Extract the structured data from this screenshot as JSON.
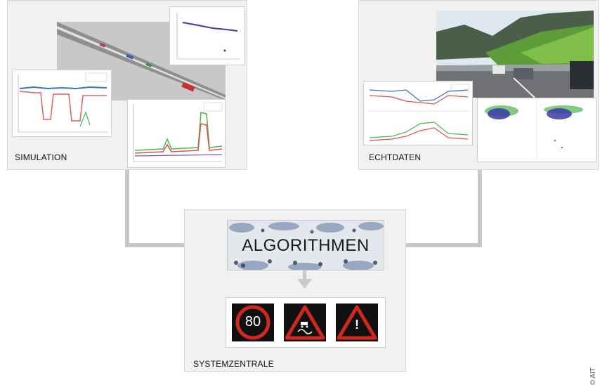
{
  "panels": {
    "simulation": {
      "label": "SIMULATION"
    },
    "echtdaten": {
      "label": "ECHTDATEN"
    },
    "systemzentrale": {
      "label": "SYSTEMZENTRALE"
    }
  },
  "algorithm": {
    "label": "ALGORITHMEN"
  },
  "signs": {
    "speed_limit": "80",
    "warning_mark": "!"
  },
  "credit": "© AIT",
  "colors": {
    "sign_red": "#d0281e",
    "arrow_gray": "#c9c9c9",
    "panel_bg": "#f1f1f1"
  }
}
